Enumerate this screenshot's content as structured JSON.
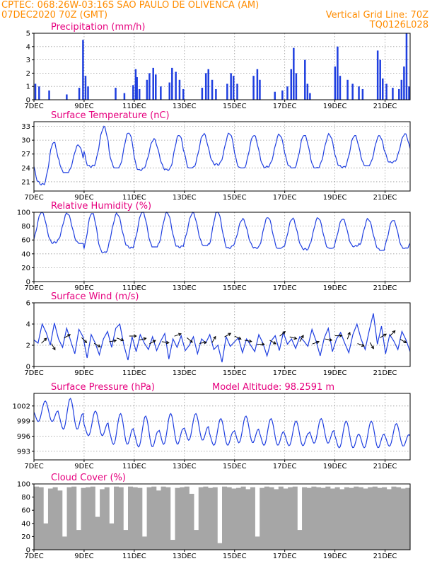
{
  "header": {
    "line1": "CPTEC:   068:26W-03:16S  SAO PAULO DE OLIVENCA (AM)",
    "line2": "07DEC2020 70Z (GMT)",
    "right1": "Vertical Grid Line: 70Z",
    "right2": "TQ0126L028"
  },
  "colors": {
    "header": "#ff8c00",
    "title": "#e6007e",
    "series": "#1f3fe0",
    "cloud": "#a6a6a6"
  },
  "x_tick_labels": [
    "7DEC",
    "9DEC",
    "11DEC",
    "13DEC",
    "15DEC",
    "17DEC",
    "19DEC",
    "21DEC"
  ],
  "x_tick_days": [
    0,
    2,
    4,
    6,
    8,
    10,
    12,
    14
  ],
  "x_range_days": [
    0,
    15
  ],
  "chart_data": [
    {
      "id": "precip",
      "type": "bar",
      "title": "Precipitation (mm/h)",
      "ylim": [
        0,
        5
      ],
      "yticks": [
        0,
        1,
        2,
        3,
        4,
        5
      ],
      "grid": true,
      "events": [
        [
          0.05,
          1.2
        ],
        [
          0.2,
          1.0
        ],
        [
          0.6,
          0.7
        ],
        [
          1.3,
          0.4
        ],
        [
          1.8,
          0.9
        ],
        [
          1.95,
          4.5
        ],
        [
          2.05,
          1.8
        ],
        [
          2.15,
          1.0
        ],
        [
          3.25,
          0.9
        ],
        [
          3.6,
          0.5
        ],
        [
          3.95,
          1.1
        ],
        [
          4.05,
          2.3
        ],
        [
          4.1,
          1.7
        ],
        [
          4.2,
          0.8
        ],
        [
          4.5,
          1.5
        ],
        [
          4.6,
          2.0
        ],
        [
          4.75,
          2.4
        ],
        [
          4.85,
          1.9
        ],
        [
          5.05,
          1.0
        ],
        [
          5.4,
          1.3
        ],
        [
          5.5,
          2.4
        ],
        [
          5.65,
          2.1
        ],
        [
          5.8,
          1.5
        ],
        [
          5.95,
          0.8
        ],
        [
          6.7,
          0.9
        ],
        [
          6.85,
          2.0
        ],
        [
          6.95,
          2.3
        ],
        [
          7.1,
          1.5
        ],
        [
          7.25,
          0.8
        ],
        [
          7.7,
          1.2
        ],
        [
          7.85,
          2.0
        ],
        [
          7.95,
          1.8
        ],
        [
          8.1,
          1.2
        ],
        [
          8.75,
          1.8
        ],
        [
          8.9,
          2.3
        ],
        [
          9.0,
          1.5
        ],
        [
          9.6,
          0.6
        ],
        [
          9.9,
          0.7
        ],
        [
          10.1,
          1.0
        ],
        [
          10.25,
          2.3
        ],
        [
          10.35,
          3.9
        ],
        [
          10.45,
          2.0
        ],
        [
          10.8,
          3.0
        ],
        [
          10.9,
          1.2
        ],
        [
          11.0,
          0.5
        ],
        [
          12.0,
          2.5
        ],
        [
          12.1,
          4.0
        ],
        [
          12.2,
          1.8
        ],
        [
          12.5,
          1.5
        ],
        [
          12.7,
          1.2
        ],
        [
          12.95,
          1.0
        ],
        [
          13.1,
          0.8
        ],
        [
          13.7,
          3.7
        ],
        [
          13.8,
          3.0
        ],
        [
          13.9,
          1.6
        ],
        [
          14.05,
          1.2
        ],
        [
          14.3,
          0.9
        ],
        [
          14.55,
          0.8
        ],
        [
          14.65,
          1.5
        ],
        [
          14.75,
          2.5
        ],
        [
          14.85,
          5.0
        ],
        [
          14.95,
          1.0
        ]
      ]
    },
    {
      "id": "temp",
      "type": "line",
      "title": "Surface Temperature (nC)",
      "ylim": [
        19,
        34
      ],
      "yticks": [
        21,
        24,
        27,
        30,
        33
      ],
      "grid": true,
      "daily": [
        {
          "min": 20.3,
          "max": 29.5
        },
        {
          "min": 23.0,
          "max": 29.0
        },
        {
          "min": 24.0,
          "max": 33.0
        },
        {
          "min": 24.0,
          "max": 31.5
        },
        {
          "min": 23.5,
          "max": 30.5
        },
        {
          "min": 23.5,
          "max": 31.0
        },
        {
          "min": 24.0,
          "max": 31.5
        },
        {
          "min": 24.5,
          "max": 31.5
        },
        {
          "min": 24.0,
          "max": 31.0
        },
        {
          "min": 24.0,
          "max": 31.5
        },
        {
          "min": 24.0,
          "max": 31.0
        },
        {
          "min": 24.0,
          "max": 31.5
        },
        {
          "min": 24.0,
          "max": 31.0
        },
        {
          "min": 24.5,
          "max": 31.0
        },
        {
          "min": 25.0,
          "max": 31.5
        }
      ]
    },
    {
      "id": "rh",
      "type": "line",
      "title": "Relative Humidity (%)",
      "ylim": [
        0,
        100
      ],
      "yticks": [
        0,
        20,
        40,
        60,
        80,
        100
      ],
      "grid": true,
      "daily": [
        {
          "min": 55,
          "max": 100
        },
        {
          "min": 55,
          "max": 100
        },
        {
          "min": 42,
          "max": 98
        },
        {
          "min": 48,
          "max": 100
        },
        {
          "min": 50,
          "max": 100
        },
        {
          "min": 48,
          "max": 100
        },
        {
          "min": 52,
          "max": 100
        },
        {
          "min": 48,
          "max": 100
        },
        {
          "min": 48,
          "max": 92
        },
        {
          "min": 48,
          "max": 92
        },
        {
          "min": 45,
          "max": 92
        },
        {
          "min": 48,
          "max": 92
        },
        {
          "min": 50,
          "max": 90
        },
        {
          "min": 45,
          "max": 92
        },
        {
          "min": 48,
          "max": 88
        }
      ]
    },
    {
      "id": "wind",
      "type": "line",
      "title": "Surface Wind (m/s)",
      "ylim": [
        0,
        6
      ],
      "yticks": [
        0,
        2,
        4,
        6
      ],
      "grid": true,
      "values": [
        2.5,
        2.2,
        4.0,
        3.2,
        2.0,
        4.1,
        2.6,
        1.8,
        3.6,
        2.4,
        1.2,
        3.5,
        2.8,
        0.8,
        3.0,
        2.2,
        1.1,
        2.6,
        3.3,
        1.8,
        3.6,
        4.0,
        2.0,
        0.6,
        2.8,
        1.4,
        3.0,
        2.2,
        1.6,
        2.8,
        1.5,
        2.4,
        3.1,
        0.7,
        2.6,
        1.8,
        2.9,
        1.5,
        2.0,
        2.8,
        1.2,
        2.6,
        2.2,
        3.0,
        1.6,
        2.0,
        0.4,
        2.8,
        1.9,
        2.3,
        2.7,
        1.3,
        2.6,
        2.0,
        1.4,
        3.0,
        2.2,
        1.0,
        2.4,
        2.9,
        1.5,
        3.2,
        2.1,
        2.6,
        1.7,
        2.8,
        2.4,
        1.9,
        3.5,
        2.4,
        1.0,
        2.7,
        3.6,
        1.4,
        2.6,
        3.2,
        2.2,
        1.3,
        3.0,
        4.0,
        2.6,
        1.6,
        3.4,
        5.0,
        2.1,
        3.8,
        1.2,
        3.0,
        2.4,
        1.6,
        3.3,
        2.5,
        1.4
      ],
      "arrows": [
        [
          0.3,
          45
        ],
        [
          0.7,
          -60
        ],
        [
          1.2,
          30
        ],
        [
          1.9,
          -45
        ],
        [
          2.4,
          -30
        ],
        [
          3.0,
          10
        ],
        [
          3.3,
          -20
        ],
        [
          3.8,
          0
        ],
        [
          4.2,
          15
        ],
        [
          4.6,
          30
        ],
        [
          5.1,
          -10
        ],
        [
          5.6,
          20
        ],
        [
          6.1,
          -40
        ],
        [
          6.6,
          10
        ],
        [
          7.1,
          60
        ],
        [
          7.6,
          30
        ],
        [
          8.0,
          -25
        ],
        [
          8.4,
          -10
        ],
        [
          8.9,
          0
        ],
        [
          9.4,
          -30
        ],
        [
          9.8,
          40
        ],
        [
          10.2,
          -15
        ],
        [
          10.6,
          60
        ],
        [
          11.1,
          20
        ],
        [
          11.6,
          -10
        ],
        [
          12.0,
          0
        ],
        [
          12.5,
          70
        ],
        [
          12.9,
          -20
        ],
        [
          13.4,
          -60
        ],
        [
          13.8,
          30
        ],
        [
          14.2,
          45
        ],
        [
          14.6,
          -30
        ]
      ]
    },
    {
      "id": "pres",
      "type": "line",
      "title": "Surface Pressure (hPa)",
      "subtitle": "Model Altitude: 98.2591 m",
      "ylim": [
        991.3,
        1004.5
      ],
      "yticks": [
        993,
        996,
        999,
        1002
      ],
      "grid": true,
      "daily": [
        {
          "max": 1003.0,
          "min": 998.0
        },
        {
          "max": 1003.5,
          "min": 996.0
        },
        {
          "max": 1001.0,
          "min": 995.0
        },
        {
          "max": 1000.5,
          "min": 993.0
        },
        {
          "max": 1000.0,
          "min": 992.5
        },
        {
          "max": 1000.5,
          "min": 993.0
        },
        {
          "max": 1000.5,
          "min": 994.0
        },
        {
          "max": 999.5,
          "min": 993.0
        },
        {
          "max": 1000.0,
          "min": 993.5
        },
        {
          "max": 999.5,
          "min": 993.0
        },
        {
          "max": 999.0,
          "min": 993.0
        },
        {
          "max": 999.5,
          "min": 993.5
        },
        {
          "max": 999.0,
          "min": 992.5
        },
        {
          "max": 999.0,
          "min": 992.5
        },
        {
          "max": 998.5,
          "min": 993.0
        }
      ]
    },
    {
      "id": "cloud",
      "type": "area",
      "title": "Cloud Cover (%)",
      "ylim": [
        0,
        100
      ],
      "yticks": [
        0,
        20,
        40,
        60,
        80,
        100
      ],
      "grid": false,
      "values": [
        96,
        95,
        40,
        93,
        95,
        90,
        20,
        95,
        96,
        30,
        94,
        95,
        96,
        50,
        92,
        95,
        40,
        96,
        95,
        30,
        96,
        95,
        94,
        20,
        95,
        96,
        90,
        96,
        95,
        15,
        94,
        95,
        96,
        85,
        30,
        95,
        96,
        94,
        95,
        10,
        96,
        95,
        93,
        94,
        96,
        92,
        95,
        20,
        94,
        96,
        95,
        92,
        96,
        93,
        95,
        96,
        30,
        95,
        94,
        96,
        95,
        94,
        96,
        93,
        95,
        92,
        95,
        94,
        96,
        95,
        93,
        95,
        96,
        94,
        95,
        92,
        96,
        95,
        93,
        94
      ]
    }
  ]
}
